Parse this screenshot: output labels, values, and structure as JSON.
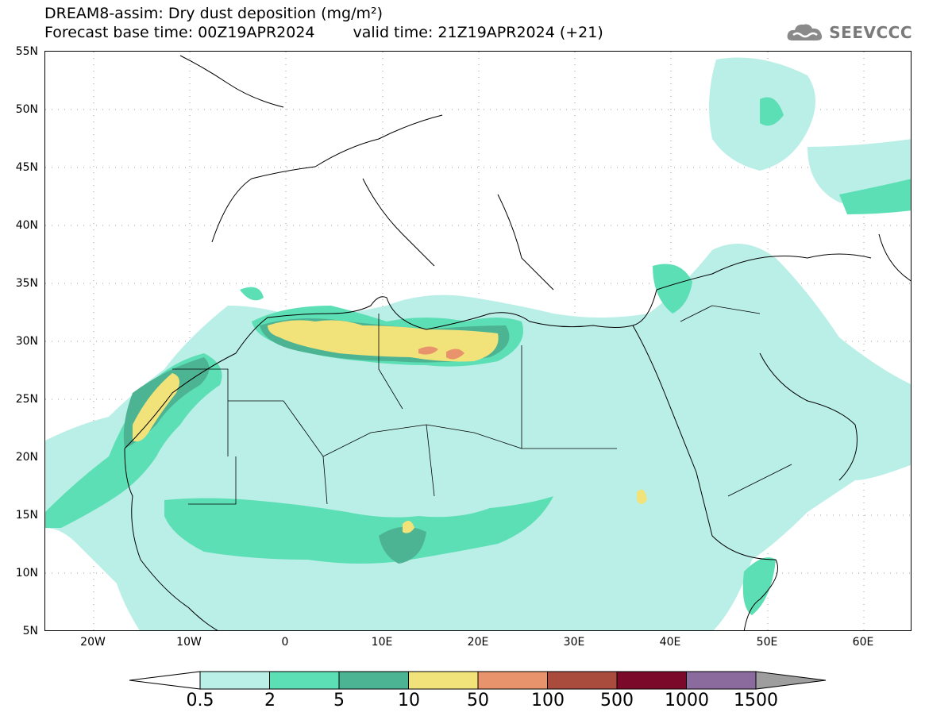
{
  "title": {
    "line1": "DREAM8-assim: Dry dust deposition (mg/m²)",
    "base_time": "Forecast base time: 00Z19APR2024",
    "valid_time": "valid time: 21Z19APR2024 (+21)"
  },
  "logo": {
    "text": "SEEVCCC",
    "icon": "cloud-logo-icon"
  },
  "map": {
    "lat_labels": [
      "55N",
      "50N",
      "45N",
      "40N",
      "35N",
      "30N",
      "25N",
      "20N",
      "15N",
      "10N",
      "5N"
    ],
    "lon_labels": [
      "20W",
      "10W",
      "0",
      "10E",
      "20E",
      "30E",
      "40E",
      "50E",
      "60E"
    ],
    "lon_range": [
      -25,
      65
    ],
    "lat_range": [
      5,
      55
    ]
  },
  "legend": {
    "labels": [
      "0.5",
      "2",
      "5",
      "10",
      "50",
      "100",
      "500",
      "1000",
      "1500"
    ],
    "colors": [
      "#b9efe7",
      "#5ddfb6",
      "#4db493",
      "#f1e37a",
      "#e8936c",
      "#a94c3e",
      "#7b0a2a",
      "#8b6a9d",
      "#9e9e9e"
    ]
  }
}
